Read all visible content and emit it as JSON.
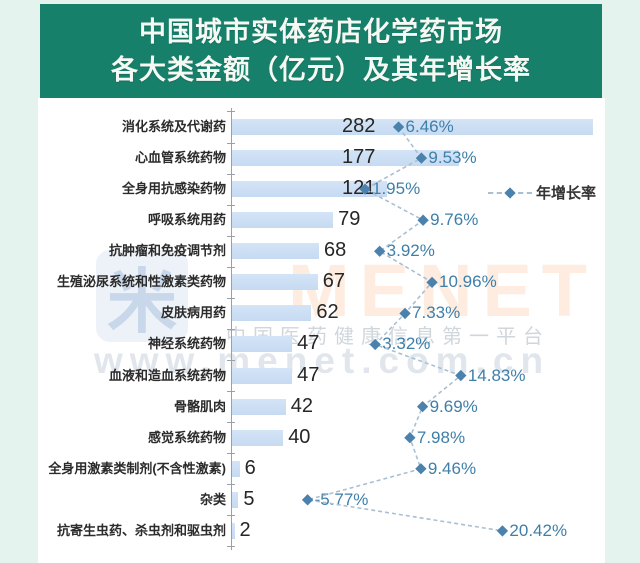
{
  "page": {
    "background": "#e4f3ee"
  },
  "header": {
    "title_line1": "中国城市实体药店化学药市场",
    "title_line2": "各大类金额（亿元）及其年增长率",
    "bg_color": "#17806a",
    "text_color": "#f6f8f4"
  },
  "legend": {
    "label": "年增长率"
  },
  "watermark": {
    "brand": "MENET",
    "logo_char": "米",
    "slogan": "中国医药健康信息第一平台",
    "url": "www.menet.com.cn"
  },
  "chart_data": {
    "type": "bar",
    "orientation": "horizontal",
    "title": "中国城市实体药店化学药市场各大类金额（亿元）及其年增长率",
    "value_unit": "亿元",
    "categories": [
      "消化系统及代谢药",
      "心血管系统药物",
      "全身用抗感染药物",
      "呼吸系统用药",
      "抗肿瘤和免疫调节剂",
      "生殖泌尿系统和性激素类药物",
      "皮肤病用药",
      "神经系统药物",
      "血液和造血系统药物",
      "骨骼肌肉",
      "感觉系统药物",
      "全身用激素类制剂(不含性激素)",
      "杂类",
      "抗寄生虫药、杀虫剂和驱虫剂"
    ],
    "series": [
      {
        "name": "金额（亿元）",
        "type": "bar",
        "values": [
          282,
          177,
          121,
          79,
          68,
          67,
          62,
          47,
          47,
          42,
          40,
          6,
          5,
          2
        ]
      },
      {
        "name": "年增长率",
        "type": "line",
        "unit": "%",
        "values": [
          6.46,
          9.53,
          1.95,
          9.76,
          3.92,
          10.96,
          7.33,
          3.32,
          14.83,
          9.69,
          7.98,
          9.46,
          -5.77,
          20.42
        ],
        "display": [
          "6.46%",
          "9.53%",
          "1.95%",
          "9.76%",
          "3.92%",
          "10.96%",
          "7.33%",
          "3.32%",
          "14.83%",
          "9.69%",
          "7.98%",
          "9.46%",
          "-5.77%",
          "20.42%"
        ]
      }
    ],
    "colors": {
      "bar": "#c9dcf2",
      "value_label": "#262626",
      "growth_label": "#3e7fa9",
      "line": "#a9bfd3",
      "marker": "#4a82ad",
      "axis": "#9aa0a6"
    },
    "layout_hints": {
      "legend_position": "middle-right",
      "grid": false,
      "value_axis_hidden": true
    }
  }
}
